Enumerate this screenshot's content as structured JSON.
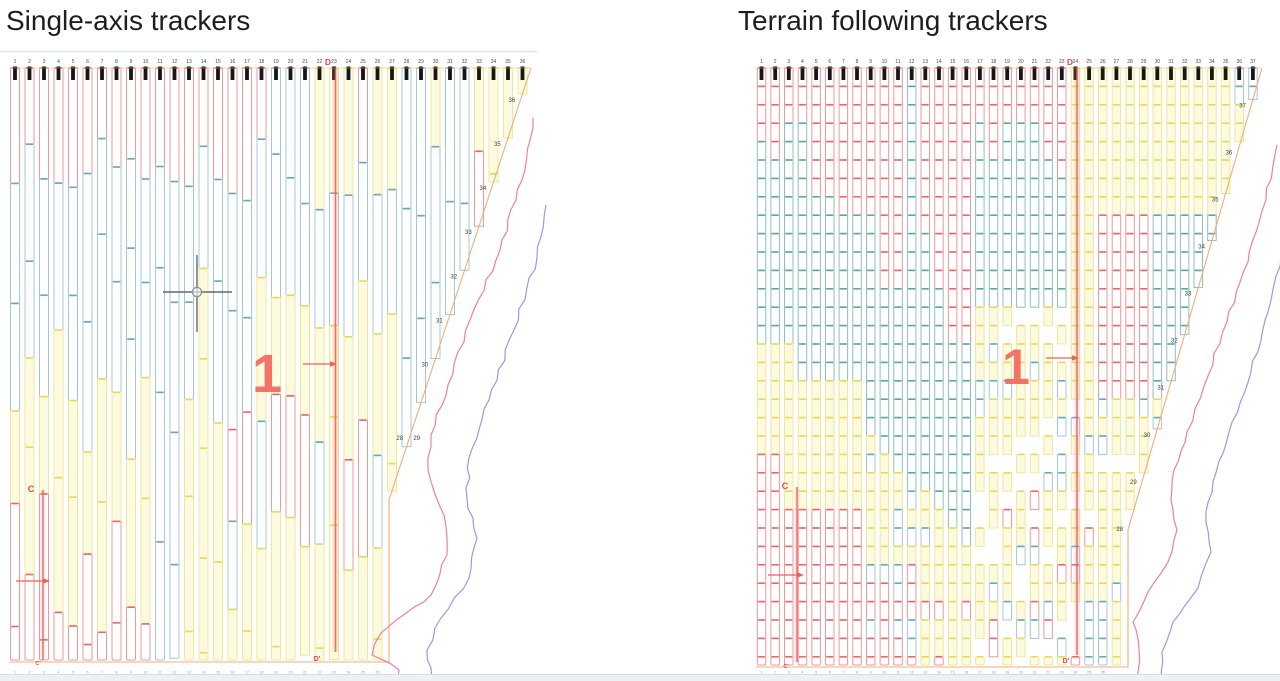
{
  "slide": {
    "background": "#ffffff",
    "bottom_bar_color": "#eef1f4",
    "top_rule_color": "#cde9e4"
  },
  "palette": {
    "tracker_red_stroke": "#f0989a",
    "tracker_red_cap": "#e4686d",
    "tracker_blue_stroke": "#a3c7da",
    "tracker_blue_cap": "#68a8b5",
    "tracker_teal_stroke": "#8ec0bd",
    "tracker_teal_cap": "#5ca6a2",
    "tracker_yellow_stroke": "#efe79c",
    "tracker_yellow_fill": "#fdfbdf",
    "tracker_yellow_cap": "#e9d75c",
    "pile_tick_black": "#161616",
    "boundary_orange": "#f2aa72",
    "contour_red": "#f2718d",
    "contour_blue": "#8d90e0",
    "annotation_red": "#ef5f5a",
    "section_label_red": "#e04848",
    "number_text": "#4c4c4c",
    "bottom_number_text": "#9a9a9a",
    "crosshair_gray": "#5f6b6b"
  },
  "panels": [
    {
      "id": "single-axis",
      "title": "Single-axis trackers",
      "column_count": 36,
      "column_numbers": [
        "1",
        "2",
        "3",
        "4",
        "5",
        "6",
        "7",
        "8",
        "9",
        "10",
        "11",
        "12",
        "13",
        "14",
        "15",
        "16",
        "17",
        "18",
        "19",
        "20",
        "21",
        "22",
        "23",
        "24",
        "25",
        "26",
        "27",
        "28",
        "29",
        "30",
        "31",
        "32",
        "33",
        "34",
        "35",
        "36"
      ],
      "edge_numbers": [
        "36",
        "35",
        "34",
        "33",
        "32",
        "31",
        "30",
        "29",
        "28"
      ],
      "bottom_numbers": [
        "1",
        "2",
        "3",
        "4",
        "5",
        "6",
        "7",
        "8",
        "9",
        "10",
        "11",
        "12",
        "13",
        "14",
        "15",
        "16",
        "17",
        "18",
        "19",
        "20",
        "21",
        "22",
        "23",
        "24",
        "25",
        "26",
        "27"
      ],
      "labels": {
        "section_d_top": "D",
        "section_d_bottom": "D'",
        "section_c_top": "C",
        "section_c_bottom": "C'",
        "zone_callout": "1"
      },
      "has_cursor": true
    },
    {
      "id": "terrain-following",
      "title": "Terrain following trackers",
      "column_count": 37,
      "column_numbers": [
        "1",
        "2",
        "3",
        "4",
        "5",
        "6",
        "7",
        "8",
        "9",
        "10",
        "11",
        "12",
        "13",
        "14",
        "15",
        "16",
        "17",
        "18",
        "19",
        "20",
        "21",
        "22",
        "23",
        "24",
        "25",
        "26",
        "27",
        "28",
        "29",
        "30",
        "31",
        "32",
        "33",
        "34",
        "35",
        "36",
        "37"
      ],
      "edge_numbers": [
        "37",
        "36",
        "35",
        "34",
        "33",
        "32",
        "31",
        "30",
        "29",
        "28"
      ],
      "bottom_numbers": [
        "1",
        "2",
        "3",
        "4",
        "5",
        "6",
        "7",
        "8",
        "9",
        "10",
        "11",
        "12",
        "13",
        "14",
        "15",
        "16",
        "17",
        "18",
        "19",
        "20",
        "21",
        "22",
        "23",
        "24",
        "25",
        "26"
      ],
      "labels": {
        "section_d_top": "D",
        "section_d_bottom": "D'",
        "section_c_top": "C",
        "section_c_bottom": "C'",
        "zone_callout": "1"
      },
      "has_cursor": false
    }
  ]
}
